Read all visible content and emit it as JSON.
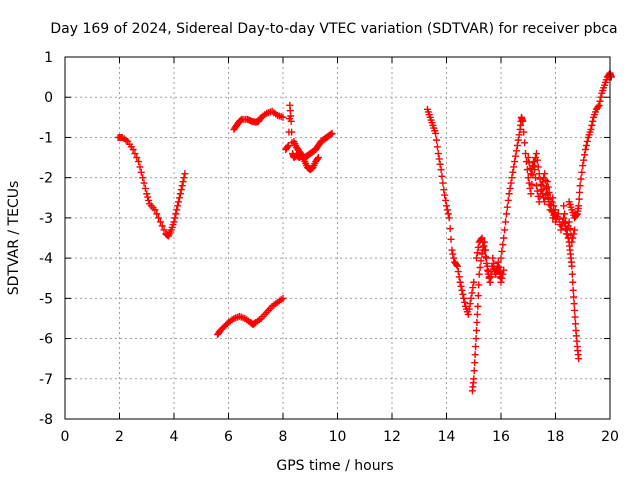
{
  "chart_data": {
    "type": "scatter",
    "title": "Day 169 of 2024, Sidereal Day-to-day VTEC variation (SDTVAR) for receiver pbca",
    "xlabel": "GPS time / hours",
    "ylabel": "SDTVAR / TECUs",
    "xlim": [
      0,
      20
    ],
    "ylim": [
      -8,
      1
    ],
    "xticks": [
      "0",
      "2",
      "4",
      "6",
      "8",
      "10",
      "12",
      "14",
      "16",
      "18",
      "20"
    ],
    "yticks": [
      "1",
      "0",
      "-1",
      "-2",
      "-3",
      "-4",
      "-5",
      "-6",
      "-7",
      "-8"
    ],
    "grid": true,
    "marker": "+",
    "color": "#ff0000",
    "segments": [
      {
        "x": [
          1.95,
          2.1,
          2.3,
          2.5,
          2.7,
          2.85,
          3.0,
          3.1,
          3.3,
          3.5,
          3.7,
          3.8,
          3.9,
          4.0,
          4.1,
          4.2,
          4.3,
          4.4
        ],
        "y": [
          -1.0,
          -1.0,
          -1.1,
          -1.3,
          -1.6,
          -2.0,
          -2.4,
          -2.65,
          -2.8,
          -3.1,
          -3.4,
          -3.45,
          -3.3,
          -3.1,
          -2.8,
          -2.5,
          -2.2,
          -1.9
        ]
      },
      {
        "x": [
          5.6,
          5.7,
          5.85,
          6.0,
          6.2,
          6.4,
          6.6,
          6.8,
          6.9,
          7.0,
          7.2,
          7.4,
          7.6,
          7.8,
          8.0
        ],
        "y": [
          -5.9,
          -5.8,
          -5.7,
          -5.6,
          -5.5,
          -5.45,
          -5.5,
          -5.6,
          -5.65,
          -5.6,
          -5.5,
          -5.35,
          -5.2,
          -5.1,
          -5.0
        ]
      },
      {
        "x": [
          6.2,
          6.3,
          6.4,
          6.5,
          6.7,
          6.85,
          7.0,
          7.1,
          7.2,
          7.4,
          7.6,
          7.8,
          8.0
        ],
        "y": [
          -0.8,
          -0.7,
          -0.6,
          -0.55,
          -0.55,
          -0.6,
          -0.62,
          -0.6,
          -0.5,
          -0.4,
          -0.35,
          -0.45,
          -0.5
        ]
      },
      {
        "x": [
          8.1,
          8.2,
          8.25,
          8.3,
          8.35,
          8.4,
          8.5,
          8.6,
          8.7,
          8.8,
          8.9,
          9.0,
          9.1,
          9.2,
          9.3
        ],
        "y": [
          -1.3,
          -1.2,
          -0.2,
          -0.6,
          -1.4,
          -1.5,
          -1.45,
          -1.5,
          -1.45,
          -1.6,
          -1.75,
          -1.8,
          -1.75,
          -1.6,
          -1.5
        ]
      },
      {
        "x": [
          8.4,
          8.5,
          8.6,
          8.7,
          8.8,
          8.9,
          9.0,
          9.1,
          9.2,
          9.3,
          9.4,
          9.5,
          9.6,
          9.7,
          9.8
        ],
        "y": [
          -1.1,
          -1.25,
          -1.35,
          -1.45,
          -1.5,
          -1.45,
          -1.4,
          -1.35,
          -1.3,
          -1.2,
          -1.1,
          -1.05,
          -1.0,
          -0.95,
          -0.9
        ]
      },
      {
        "x": [
          13.3,
          13.4,
          13.5,
          13.6,
          13.7,
          13.8,
          13.9,
          14.0,
          14.1,
          14.2,
          14.3,
          14.4,
          14.5,
          14.6,
          14.7,
          14.8,
          14.9,
          15.0
        ],
        "y": [
          -0.3,
          -0.5,
          -0.7,
          -0.9,
          -1.4,
          -1.8,
          -2.3,
          -2.7,
          -3.0,
          -3.8,
          -4.1,
          -4.2,
          -4.6,
          -4.9,
          -5.2,
          -5.4,
          -5.0,
          -4.6
        ]
      },
      {
        "x": [
          14.95,
          15.0,
          15.05,
          15.1,
          15.15,
          15.2,
          15.3,
          15.4,
          15.5,
          15.6,
          15.7,
          15.8,
          15.9,
          16.0,
          16.1
        ],
        "y": [
          -7.3,
          -7.0,
          -6.4,
          -5.8,
          -5.2,
          -4.4,
          -3.9,
          -3.6,
          -4.2,
          -4.6,
          -4.0,
          -4.4,
          -4.2,
          -4.6,
          -4.3
        ]
      },
      {
        "x": [
          15.1,
          15.2,
          15.3,
          15.4,
          15.5,
          15.6,
          15.7,
          15.8,
          15.9,
          16.0
        ],
        "y": [
          -4.0,
          -3.6,
          -3.5,
          -3.8,
          -4.3,
          -4.6,
          -4.2,
          -4.4,
          -4.1,
          -4.5
        ]
      },
      {
        "x": [
          16.0,
          16.1,
          16.2,
          16.3,
          16.4,
          16.5,
          16.6,
          16.7,
          16.75,
          16.8,
          16.9,
          17.0,
          17.1,
          17.2,
          17.3,
          17.4,
          17.5,
          17.6,
          17.7,
          17.8,
          17.9,
          18.0
        ],
        "y": [
          -4.0,
          -3.5,
          -2.9,
          -2.4,
          -2.0,
          -1.6,
          -1.2,
          -0.8,
          -0.5,
          -0.6,
          -1.4,
          -2.0,
          -2.4,
          -1.7,
          -1.4,
          -1.9,
          -2.3,
          -2.6,
          -2.1,
          -2.5,
          -3.0,
          -2.8
        ]
      },
      {
        "x": [
          17.0,
          17.1,
          17.2,
          17.3,
          17.4,
          17.5,
          17.6,
          17.7,
          17.8,
          17.9,
          18.0,
          18.1,
          18.2,
          18.3,
          18.4,
          18.5,
          18.6,
          18.7
        ],
        "y": [
          -1.5,
          -1.9,
          -1.6,
          -2.2,
          -2.6,
          -2.2,
          -1.9,
          -2.4,
          -2.8,
          -2.5,
          -3.1,
          -2.9,
          -3.3,
          -3.0,
          -3.4,
          -3.1,
          -3.6,
          -3.3
        ]
      },
      {
        "x": [
          18.3,
          18.4,
          18.5,
          18.55,
          18.6,
          18.65,
          18.7,
          18.75,
          18.8,
          18.85
        ],
        "y": [
          -2.7,
          -3.3,
          -3.6,
          -3.9,
          -4.2,
          -4.8,
          -5.3,
          -5.8,
          -6.2,
          -6.5
        ]
      },
      {
        "x": [
          18.5,
          18.6,
          18.7,
          18.8,
          18.85,
          18.9,
          19.0,
          19.1,
          19.2,
          19.3,
          19.4,
          19.5,
          19.6,
          19.7,
          19.8,
          19.9,
          20.0,
          20.05
        ],
        "y": [
          -2.6,
          -2.8,
          -3.0,
          -2.9,
          -2.7,
          -2.2,
          -1.7,
          -1.3,
          -1.0,
          -0.8,
          -0.5,
          -0.3,
          -0.2,
          0.1,
          0.3,
          0.5,
          0.6,
          0.5
        ]
      }
    ]
  }
}
